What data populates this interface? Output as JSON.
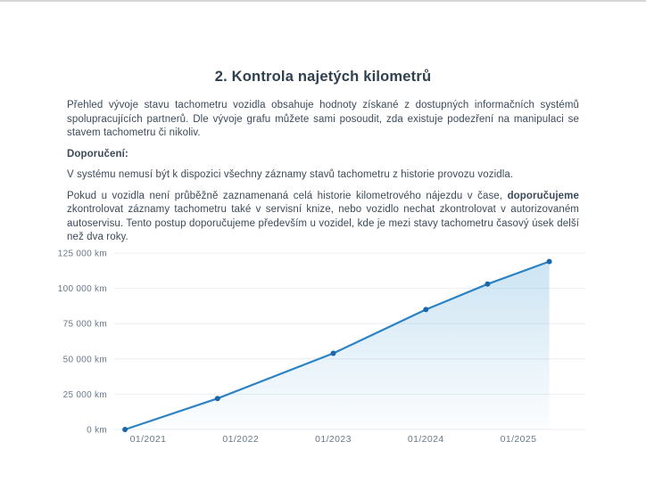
{
  "document": {
    "title": "2. Kontrola najetých kilometrů",
    "intro": "Přehled vývoje stavu tachometru vozidla obsahuje hodnoty získané z dostupných informačních systémů spolupracujících partnerů. Dle vývoje grafu můžete sami posoudit, zda existuje podezření na manipulaci se stavem tachometru či nikoliv.",
    "recommendation_label": "Doporučení:",
    "system_note": "V systému nemusí být k dispozici všechny záznamy stavů tachometru z historie provozu vozidla.",
    "advice": {
      "part1": "Pokud u vozidla není průběžně zaznamenaná celá historie kilometrového nájezdu v čase, ",
      "bold": "doporučujeme",
      "part2": " zkontrolovat záznamy tachometru také v servisní knize, nebo vozidlo nechat zkontrolovat v autorizovaném autoservisu. Tento postup doporučujeme především u vozidel, kde je mezi stavy tachometru časový úsek delší než dva roky."
    }
  },
  "chart_data": {
    "type": "area",
    "title": "",
    "unit": "km",
    "x": [
      "10/2020",
      "10/2021",
      "01/2023",
      "01/2024",
      "09/2024",
      "05/2025"
    ],
    "values": [
      0,
      22000,
      54000,
      85000,
      103000,
      119000
    ],
    "x_ticks": [
      "01/2021",
      "01/2022",
      "01/2023",
      "01/2024",
      "01/2025"
    ],
    "y_ticks": [
      {
        "label": "0 km",
        "value": 0
      },
      {
        "label": "25 000 km",
        "value": 25000
      },
      {
        "label": "50 000 km",
        "value": 50000
      },
      {
        "label": "75 000 km",
        "value": 75000
      },
      {
        "label": "100 000 km",
        "value": 100000
      },
      {
        "label": "125 000 km",
        "value": 125000
      }
    ],
    "ylim": [
      0,
      125000
    ],
    "grid": "horizontal",
    "legend": "none",
    "colors": {
      "line": "#2b82c4",
      "point": "#1a67a9",
      "fill": "#56a5d8",
      "grid": "#e9eef3",
      "axis_text": "#68798b"
    }
  }
}
